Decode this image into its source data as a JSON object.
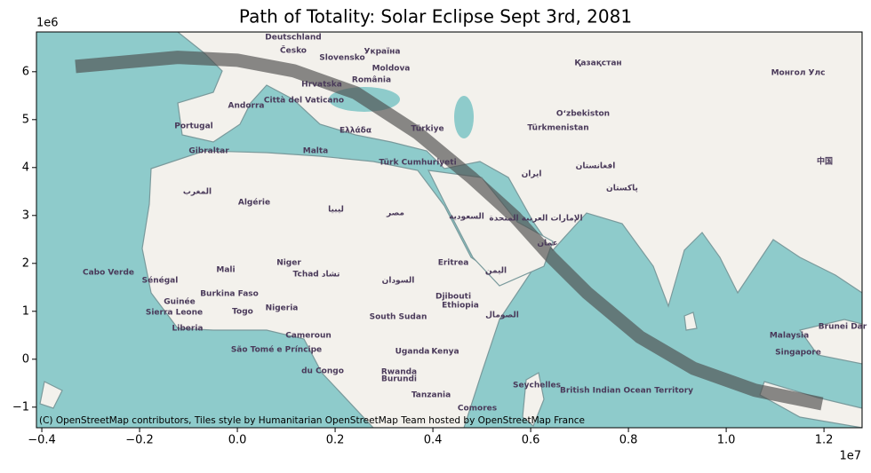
{
  "chart_data": {
    "type": "line",
    "title": "Path of Totality: Solar Eclipse Sept 3rd, 2081",
    "x": [
      -3310000,
      -1220000,
      0,
      1150000,
      2420000,
      3690000,
      4780000,
      5690000,
      6420000,
      7150000,
      8240000,
      9330000,
      10600000,
      11960000
    ],
    "series": [
      {
        "color": "#4d4d4d",
        "opacity": 0.65,
        "values": [
          6110000,
          6300000,
          6240000,
          6020000,
          5560000,
          4720000,
          3800000,
          2960000,
          2130000,
          1390000,
          460000,
          -190000,
          -650000,
          -930000
        ]
      }
    ],
    "xlim": [
      -4110000,
      12780000
    ],
    "ylim": [
      -1430000,
      6830000
    ],
    "xticks": [
      {
        "value": -4000000,
        "label": "−0.4"
      },
      {
        "value": -2000000,
        "label": "−0.2"
      },
      {
        "value": 0,
        "label": "0.0"
      },
      {
        "value": 2000000,
        "label": "0.2"
      },
      {
        "value": 4000000,
        "label": "0.4"
      },
      {
        "value": 6000000,
        "label": "0.6"
      },
      {
        "value": 8000000,
        "label": "0.8"
      },
      {
        "value": 10000000,
        "label": "1.0"
      },
      {
        "value": 12000000,
        "label": "1.2"
      }
    ],
    "yticks": [
      {
        "value": -1000000,
        "label": "−1"
      },
      {
        "value": 0,
        "label": "0"
      },
      {
        "value": 1000000,
        "label": "1"
      },
      {
        "value": 2000000,
        "label": "2"
      },
      {
        "value": 3000000,
        "label": "3"
      },
      {
        "value": 4000000,
        "label": "4"
      },
      {
        "value": 5000000,
        "label": "5"
      },
      {
        "value": 6000000,
        "label": "6"
      }
    ],
    "x_offset_label": "1e7",
    "y_offset_label": "1e6",
    "attribution": "(C) OpenStreetMap contributors, Tiles style by Humanitarian OpenStreetMap Team hosted by OpenStreetMap France",
    "map_labels": [
      "Deutschland",
      "Česko",
      "Україна",
      "Қазақстан",
      "Монгол Улс",
      "Slovensko",
      "Moldova",
      "România",
      "Hrvatska",
      "Andorra",
      "Città del Vaticano",
      "Ελλάδα",
      "Portugal",
      "Türkiye",
      "Oʻzbekiston",
      "Türkmenistan",
      "Gibraltar",
      "Malta",
      "Türk Cumhuriyeti",
      "ایران",
      "افغانستان",
      "پاکستان",
      "Algérie",
      "ليبيا",
      "مصر",
      "السعودية",
      "الإمارات العربية المتحدة",
      "عمان",
      "Cabo Verde",
      "Mali",
      "Niger",
      "Tchad تشاد",
      "السودان",
      "Eritrea",
      "اليمن",
      "Sénégal",
      "Guinée",
      "Burkina Faso",
      "Sierra Leone",
      "Togo",
      "Nigeria",
      "Djibouti",
      "Ethiopia",
      "South Sudan",
      "الصومال",
      "Liberia",
      "Cameroun",
      "São Tomé e Príncipe",
      "du Congo",
      "Uganda",
      "Kenya",
      "Rwanda",
      "Burundi",
      "Tanzania",
      "Seychelles",
      "Comores",
      "British Indian Ocean Territory",
      "Malaysia",
      "Singapore",
      "Brunei Dar",
      "中国",
      "المغرب"
    ]
  }
}
